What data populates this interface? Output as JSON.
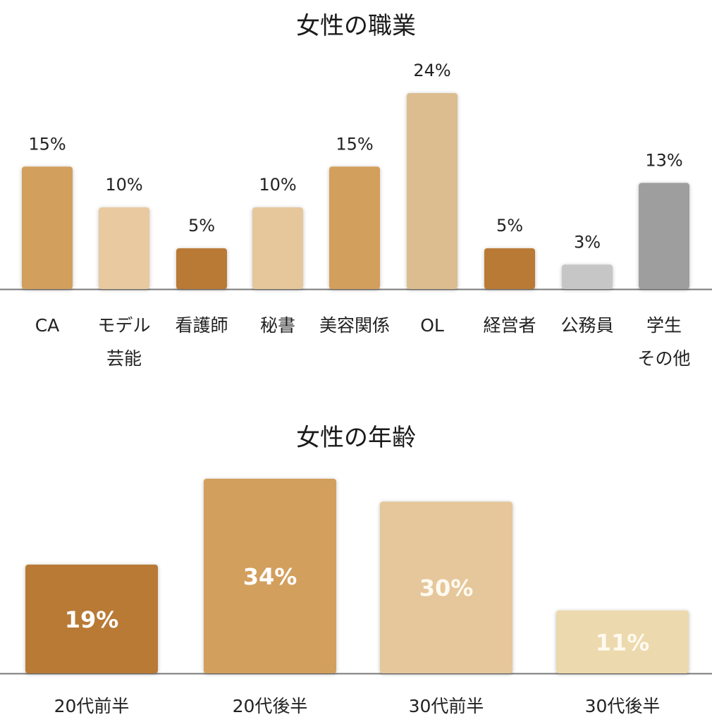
{
  "chart_data": [
    {
      "type": "bar",
      "title": "女性の職業",
      "categories": [
        [
          "CA"
        ],
        [
          "モデル",
          "芸能"
        ],
        [
          "看護師"
        ],
        [
          "秘書"
        ],
        [
          "美容関係"
        ],
        [
          "OL"
        ],
        [
          "経営者"
        ],
        [
          "公務員"
        ],
        [
          "学生",
          "その他"
        ]
      ],
      "values": [
        15,
        10,
        5,
        10,
        15,
        24,
        5,
        3,
        13
      ],
      "value_labels": [
        "15%",
        "10%",
        "5%",
        "10%",
        "15%",
        "24%",
        "5%",
        "3%",
        "13%"
      ],
      "colors": [
        "#d39f5d",
        "#e8c9a0",
        "#b97a35",
        "#e5c79b",
        "#d39f5d",
        "#dcbd90",
        "#b97a35",
        "#c6c6c6",
        "#9e9e9e"
      ],
      "ylim": [
        0,
        24
      ]
    },
    {
      "type": "bar",
      "title": "女性の年齢",
      "categories": [
        [
          "20代前半"
        ],
        [
          "20代後半"
        ],
        [
          "30代前半"
        ],
        [
          "30代後半"
        ]
      ],
      "values": [
        19,
        34,
        30,
        11
      ],
      "value_labels": [
        "19%",
        "34%",
        "30%",
        "11%"
      ],
      "colors": [
        "#b97a35",
        "#d39f5d",
        "#e5c79b",
        "#ecd9ad"
      ],
      "ylim": [
        0,
        34
      ]
    }
  ]
}
